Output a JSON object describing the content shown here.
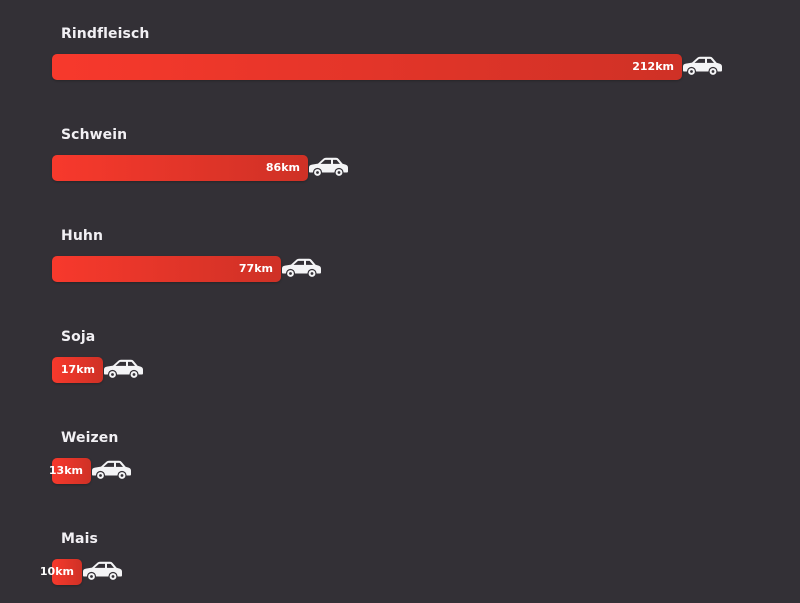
{
  "chart_data": {
    "type": "bar",
    "orientation": "horizontal",
    "categories": [
      "Rindfleisch",
      "Schwein",
      "Huhn",
      "Soja",
      "Weizen",
      "Mais"
    ],
    "values": [
      212,
      86,
      77,
      17,
      13,
      10
    ],
    "value_labels": [
      "212km",
      "86km",
      "77km",
      "17km",
      "13km",
      "10km"
    ],
    "unit": "km",
    "title": "",
    "xlabel": "",
    "ylabel": "",
    "xlim": [
      0,
      212
    ],
    "grid": false,
    "legend": "none",
    "bar_marker_icon": "car-icon",
    "colors": {
      "background": "#333036",
      "bar_start": "#f7392c",
      "bar_end": "#cf3126",
      "label_text": "#f2f0f4",
      "value_text": "#ffffff",
      "car_icon": "#f4f4f6"
    }
  }
}
